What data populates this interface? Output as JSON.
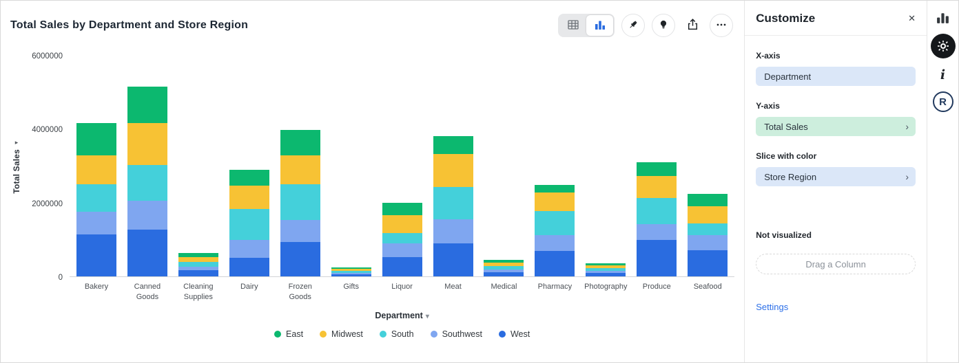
{
  "header": {
    "title": "Total Sales by Department and Store Region"
  },
  "glyphs": {
    "close": "✕",
    "caret_down": "▾",
    "chevron_right": "›",
    "axis_arrow": "▸",
    "info": "i",
    "r_logo": "R"
  },
  "chart_data": {
    "type": "bar",
    "stacked": true,
    "title": "Total Sales by Department and Store Region",
    "xlabel": "Department",
    "ylabel": "Total Sales",
    "ylim": [
      0,
      6000000
    ],
    "yticks": [
      0,
      2000000,
      4000000,
      6000000
    ],
    "grid": false,
    "legend_position": "bottom",
    "categories": [
      "Bakery",
      "Canned Goods",
      "Cleaning Supplies",
      "Dairy",
      "Frozen Goods",
      "Gifts",
      "Liquor",
      "Meat",
      "Medical",
      "Pharmacy",
      "Photography",
      "Produce",
      "Seafood"
    ],
    "series": [
      {
        "name": "East",
        "color": "#0cb86f",
        "values": [
          880000,
          990000,
          110000,
          430000,
          690000,
          30000,
          340000,
          490000,
          80000,
          200000,
          60000,
          380000,
          340000
        ]
      },
      {
        "name": "Midwest",
        "color": "#f7c234",
        "values": [
          790000,
          1130000,
          130000,
          640000,
          790000,
          50000,
          490000,
          900000,
          100000,
          510000,
          80000,
          600000,
          470000
        ]
      },
      {
        "name": "South",
        "color": "#44d0da",
        "values": [
          750000,
          960000,
          130000,
          840000,
          960000,
          50000,
          280000,
          880000,
          90000,
          660000,
          70000,
          710000,
          320000
        ]
      },
      {
        "name": "Southwest",
        "color": "#7fa6f0",
        "values": [
          620000,
          790000,
          90000,
          490000,
          600000,
          40000,
          380000,
          660000,
          80000,
          430000,
          60000,
          430000,
          410000
        ]
      },
      {
        "name": "West",
        "color": "#2a6ce0",
        "values": [
          1130000,
          1260000,
          160000,
          510000,
          940000,
          60000,
          530000,
          900000,
          120000,
          690000,
          90000,
          980000,
          710000
        ]
      }
    ]
  },
  "customize_panel": {
    "title": "Customize",
    "x_axis_label": "X-axis",
    "x_axis_value": "Department",
    "y_axis_label": "Y-axis",
    "y_axis_value": "Total Sales",
    "slice_label": "Slice with color",
    "slice_value": "Store Region",
    "not_visualized_label": "Not visualized",
    "drag_placeholder": "Drag a Column",
    "settings_link": "Settings"
  },
  "icons": {
    "toolbar": [
      "table-icon",
      "stacked-bar-chart-icon",
      "pin-icon",
      "lightbulb-icon",
      "export-icon",
      "ellipsis-icon"
    ],
    "rail": [
      "bar-chart-icon",
      "gear-icon",
      "info-icon",
      "r-logo-icon"
    ],
    "panel": [
      "close-icon",
      "chevron-right-icon"
    ]
  }
}
